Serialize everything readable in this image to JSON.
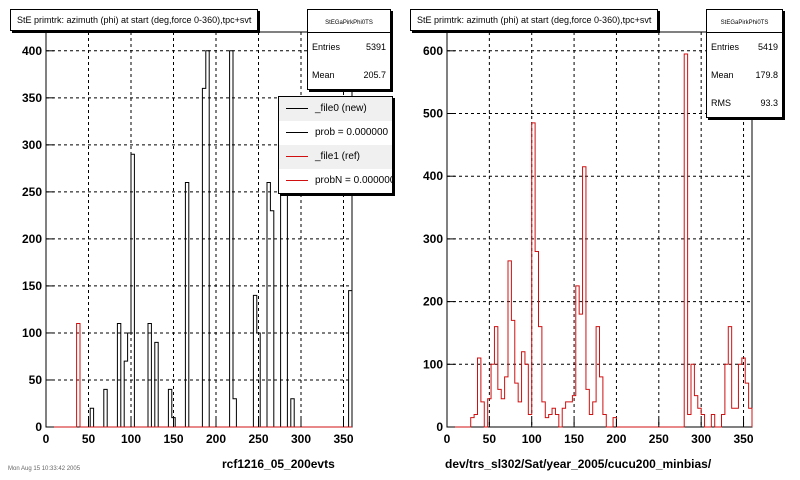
{
  "colors": {
    "file0": "#000000",
    "file1": "#d01010",
    "grid": "#000000"
  },
  "left_panel": {
    "title": "StE primtrk: azimuth (phi) at start (deg,force 0-360),tpc+svt",
    "stats_header": "StEGaPirkPhi0TS",
    "entries_label": "Entries",
    "entries": "5391",
    "mean_label": "Mean",
    "mean": "205.7",
    "x_title": "rcf1216_05_200evts",
    "legend": [
      {
        "label": "_file0 (new)",
        "color": "#000000"
      },
      {
        "label": "prob = 0.000000",
        "color": "#000000"
      },
      {
        "label": "_file1 (ref)",
        "color": "#d01010"
      },
      {
        "label": "probN = 0.000000",
        "color": "#d01010"
      }
    ]
  },
  "right_panel": {
    "title": "StE primtrk: azimuth (phi) at start (deg,force 0-360),tpc+svt",
    "stats_header": "StEGaPirkPhi0TS",
    "entries_label": "Entries",
    "entries": "5419",
    "mean_label": "Mean",
    "mean": "179.8",
    "rms_label": "RMS",
    "rms": "93.3",
    "x_title": "dev/trs_sl302/Sat/year_2005/cucu200_minbias/"
  },
  "footer_text": "Mon Aug 15 10:33:42 2005",
  "chart_data": [
    {
      "type": "histogram",
      "title": "StE primtrk: azimuth (phi) at start (deg,force 0-360),tpc+svt",
      "xlabel": "rcf1216_05_200evts",
      "xlim": [
        0,
        360
      ],
      "ylim": [
        0,
        420
      ],
      "xticks": [
        0,
        50,
        100,
        150,
        200,
        250,
        300,
        350
      ],
      "yticks": [
        0,
        50,
        100,
        150,
        200,
        250,
        300,
        350,
        400
      ],
      "bin_width": 4,
      "grid": true,
      "legend_position": "top-right",
      "series": [
        {
          "name": "_file0 (new)",
          "color": "#000000",
          "values": [
            0,
            0,
            0,
            0,
            0,
            0,
            0,
            0,
            0,
            0,
            0,
            0,
            0,
            20,
            0,
            0,
            0,
            40,
            0,
            0,
            0,
            110,
            0,
            70,
            100,
            290,
            0,
            0,
            0,
            0,
            110,
            0,
            90,
            0,
            0,
            0,
            40,
            10,
            0,
            0,
            0,
            260,
            0,
            0,
            0,
            0,
            360,
            400,
            0,
            0,
            0,
            0,
            0,
            0,
            400,
            30,
            0,
            0,
            0,
            0,
            0,
            140,
            100,
            0,
            0,
            260,
            230,
            0,
            0,
            280,
            250,
            0,
            30,
            0,
            0,
            0,
            0,
            0,
            0,
            0,
            0,
            0,
            0,
            0,
            0,
            0,
            0,
            0,
            0,
            145
          ]
        },
        {
          "name": "_file1 (ref)",
          "color": "#d01010",
          "values": [
            0,
            0,
            0,
            0,
            0,
            0,
            0,
            0,
            0,
            110,
            0,
            0,
            0,
            0,
            0,
            0,
            0,
            0,
            0,
            0,
            0,
            0,
            0,
            0,
            0,
            0,
            0,
            0,
            0,
            0,
            0,
            0,
            0,
            0,
            0,
            0,
            0,
            0,
            0,
            0,
            0,
            0,
            0,
            0,
            0,
            0,
            0,
            0,
            0,
            0,
            0,
            0,
            0,
            0,
            0,
            0,
            0,
            0,
            0,
            0,
            0,
            0,
            0,
            0,
            0,
            0,
            0,
            0,
            0,
            0,
            0,
            0,
            0,
            0,
            0,
            0,
            0,
            0,
            0,
            0,
            0,
            0,
            0,
            0,
            0,
            0,
            0,
            0,
            0,
            0
          ]
        }
      ]
    },
    {
      "type": "histogram",
      "title": "StE primtrk: azimuth (phi) at start (deg,force 0-360),tpc+svt",
      "xlabel": "dev/trs_sl302/Sat/year_2005/cucu200_minbias/",
      "xlim": [
        0,
        360
      ],
      "ylim": [
        0,
        630
      ],
      "xticks": [
        0,
        50,
        100,
        150,
        200,
        250,
        300,
        350
      ],
      "yticks": [
        0,
        100,
        200,
        300,
        400,
        500,
        600
      ],
      "bin_width": 4,
      "grid": true,
      "series": [
        {
          "name": "_file1 (ref)",
          "color": "#d01010",
          "values": [
            0,
            0,
            0,
            0,
            0,
            0,
            0,
            15,
            20,
            110,
            40,
            0,
            45,
            100,
            160,
            60,
            45,
            80,
            265,
            170,
            70,
            40,
            120,
            100,
            20,
            485,
            280,
            160,
            40,
            15,
            20,
            30,
            20,
            0,
            30,
            40,
            40,
            50,
            225,
            180,
            415,
            60,
            20,
            40,
            160,
            80,
            20,
            0,
            0,
            15,
            0,
            0,
            0,
            0,
            0,
            0,
            0,
            0,
            0,
            0,
            0,
            0,
            0,
            0,
            0,
            0,
            0,
            0,
            0,
            0,
            595,
            20,
            100,
            50,
            30,
            20,
            0,
            0,
            20,
            0,
            0,
            20,
            100,
            160,
            30,
            30,
            100,
            110,
            70,
            30
          ]
        }
      ]
    }
  ]
}
